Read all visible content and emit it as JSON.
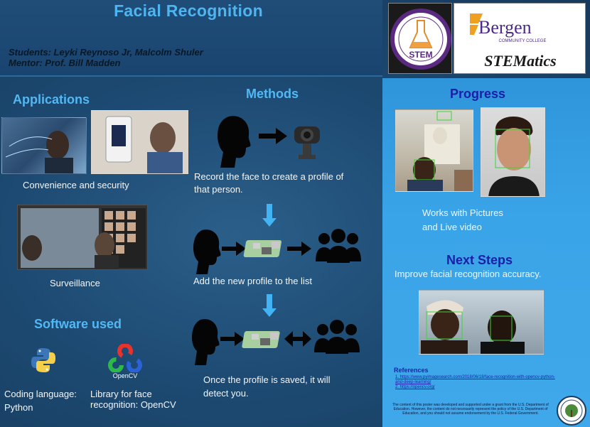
{
  "header": {
    "title": "Facial Recognition",
    "students": "Students: Leyki Reynoso Jr, Malcolm Shuler",
    "mentor": "Mentor:    Prof. Bill Madden",
    "logo_stem_text": "STEM",
    "logo_bergen_text": "Bergen",
    "logo_bergen_sub": "COMMUNITY COLLEGE",
    "logo_stematics_text": "STEMatics"
  },
  "applications": {
    "heading": "Applications",
    "convenience_caption": "Convenience and security",
    "surveillance_caption": "Surveillance"
  },
  "software": {
    "heading": "Software used",
    "python_caption_line1": "Coding language:",
    "python_caption_line2": "Python",
    "opencv_label": "OpenCV",
    "opencv_caption_line1": "Library for face",
    "opencv_caption_line2": "recognition: OpenCV"
  },
  "methods": {
    "heading": "Methods",
    "step1_line1": "Record the face to create a profile of",
    "step1_line2": "that person.",
    "step2": "Add the new profile to the list",
    "step3_line1": "Once the profile is saved, it will",
    "step3_line2": "detect you."
  },
  "progress": {
    "heading": "Progress",
    "caption_line1": "Works with Pictures",
    "caption_line2": "and Live video"
  },
  "next_steps": {
    "heading": "Next Steps",
    "text": "Improve facial recognition accuracy."
  },
  "references": {
    "heading": "References",
    "items": [
      "1.   https://www.pyimagesearch.com/2018/06/18/face-recognition-with-opencv-python-and-deep-learning/",
      "2.   https://opencv.org/"
    ]
  },
  "disclaimer": "The content of this poster was developed and supported under a grant from the U.S. Department of Education. However, the content do not necessarily represent the policy of the U.S. Department of Education, and you should not assume endorsement by the U.S. Federal Government.",
  "colors": {
    "accent_blue": "#4fb5f0",
    "dark_blue_heading": "#1b1fa8",
    "panel_blue": "#3aa4e8",
    "arrow_blue": "#42b4f4"
  },
  "icons": [
    "head-silhouette-icon",
    "arrow-right-icon",
    "webcam-icon",
    "raspberry-pi-icon",
    "group-people-icon",
    "double-arrow-icon",
    "python-logo-icon",
    "opencv-logo-icon",
    "education-seal-icon"
  ]
}
